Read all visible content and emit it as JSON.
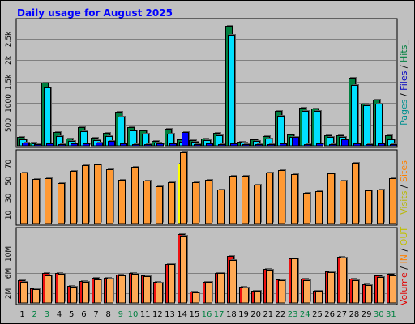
{
  "chart_data": {
    "type": "bar",
    "title": "Daily usage for August 2025",
    "categories": [
      "1",
      "2",
      "3",
      "4",
      "5",
      "6",
      "7",
      "8",
      "9",
      "10",
      "11",
      "12",
      "13",
      "14",
      "15",
      "16",
      "17",
      "18",
      "19",
      "20",
      "21",
      "22",
      "23",
      "24",
      "25",
      "26",
      "27",
      "28",
      "29",
      "30",
      "31"
    ],
    "weekend_days": [
      "2",
      "3",
      "9",
      "10",
      "16",
      "17",
      "23",
      "24",
      "30",
      "31"
    ],
    "panels": [
      {
        "name": "hits-files-pages",
        "yticks": [
          {
            "value": 500,
            "label": "500"
          },
          {
            "value": 1000,
            "label": "1000"
          },
          {
            "value": 1500,
            "label": "1.5k"
          },
          {
            "value": 2000,
            "label": "2k"
          },
          {
            "value": 2500,
            "label": "2.5k"
          }
        ],
        "ylim": [
          0,
          2850
        ],
        "series": [
          {
            "name": "Hits",
            "color": "#008040",
            "values": [
              200,
              80,
              1480,
              330,
              170,
              430,
              190,
              310,
              800,
              440,
              350,
              110,
              390,
              150,
              140,
              170,
              310,
              2800,
              100,
              160,
              230,
              820,
              270,
              890,
              860,
              250,
              250,
              1580,
              990,
              1070,
              250
            ]
          },
          {
            "name": "Files",
            "color": "#00e0ff",
            "values": [
              150,
              60,
              1350,
              230,
              120,
              340,
              140,
              220,
              680,
              360,
              280,
              80,
              280,
              100,
              100,
              130,
              240,
              2580,
              70,
              120,
              170,
              700,
              210,
              820,
              810,
              200,
              200,
              1420,
              940,
              980,
              160
            ]
          },
          {
            "name": "Pages",
            "color": "#0000ff",
            "values": [
              80,
              40,
              60,
              40,
              60,
              50,
              70,
              110,
              60,
              40,
              40,
              50,
              60,
              320,
              40,
              50,
              40,
              60,
              30,
              40,
              40,
              50,
              200,
              40,
              50,
              40,
              150,
              50,
              40,
              60,
              40
            ]
          }
        ],
        "legend": [
          {
            "text": "Pages",
            "color": "#009090"
          },
          {
            "text": " / ",
            "color": "#000000"
          },
          {
            "text": "Files",
            "color": "#0000c0"
          },
          {
            "text": " / ",
            "color": "#000000"
          },
          {
            "text": "Hits",
            "color": "#008040"
          },
          {
            "text": "_",
            "color": "#000000"
          }
        ]
      },
      {
        "name": "visits-sites",
        "yticks": [
          {
            "value": 10,
            "label": "10"
          },
          {
            "value": 30,
            "label": "30"
          },
          {
            "value": 50,
            "label": "50"
          },
          {
            "value": 70,
            "label": "70"
          }
        ],
        "ylim": [
          0,
          80
        ],
        "series": [
          {
            "name": "Visits",
            "color": "#ffff00",
            "values": [
              0,
              0,
              0,
              0,
              0,
              0,
              0,
              0,
              0,
              0,
              0,
              0,
              0,
              70,
              0,
              0,
              0,
              0,
              0,
              0,
              0,
              0,
              0,
              0,
              0,
              0,
              0,
              0,
              0,
              0,
              0
            ]
          },
          {
            "name": "Sites",
            "color": "#ff9933",
            "values": [
              59,
              52,
              53,
              47,
              61,
              68,
              69,
              63,
              51,
              66,
              50,
              43,
              48,
              83,
              48,
              51,
              40,
              56,
              56,
              45,
              59,
              62,
              57,
              36,
              38,
              58,
              50,
              71,
              39,
              40,
              53
            ]
          }
        ],
        "legend": [
          {
            "text": "Visits",
            "color": "#b8b800"
          },
          {
            "text": " / ",
            "color": "#000000"
          },
          {
            "text": "Sites",
            "color": "#ff8000"
          }
        ]
      },
      {
        "name": "volume",
        "yticks": [
          {
            "value": 2,
            "label": "2M"
          },
          {
            "value": 6,
            "label": "6M"
          },
          {
            "value": 10,
            "label": "10M"
          }
        ],
        "ylim": [
          0,
          14.2
        ],
        "series": [
          {
            "name": "Volume",
            "color": "#ee1111",
            "values": [
              4.5,
              3.0,
              6.0,
              6.0,
              3.5,
              4.4,
              5.0,
              5.0,
              5.7,
              6.0,
              5.5,
              4.2,
              7.9,
              13.8,
              2.3,
              4.3,
              6.1,
              9.4,
              3.2,
              2.5,
              6.8,
              4.7,
              9.0,
              4.9,
              2.5,
              6.3,
              9.3,
              4.9,
              3.8,
              5.5,
              5.8
            ]
          },
          {
            "name": "IN",
            "color": "#ffaa55",
            "values": [
              4.2,
              2.8,
              5.6,
              5.8,
              3.3,
              4.2,
              4.8,
              4.9,
              5.5,
              5.9,
              5.4,
              4.1,
              7.8,
              13.6,
              2.2,
              4.2,
              6.0,
              8.6,
              3.1,
              2.4,
              6.7,
              4.5,
              8.9,
              4.6,
              2.4,
              6.2,
              9.1,
              4.5,
              3.6,
              5.2,
              5.6
            ]
          }
        ],
        "legend": [
          {
            "text": "Volume",
            "color": "#e00000"
          },
          {
            "text": " / ",
            "color": "#000000"
          },
          {
            "text": "IN",
            "color": "#ff8000"
          },
          {
            "text": " / ",
            "color": "#000000"
          },
          {
            "text": "OUT",
            "color": "#c0c000"
          }
        ]
      }
    ]
  },
  "colors": {
    "background": "#c0c0c0",
    "grid": "#808080",
    "title": "#0000ff",
    "weekday": "#000000",
    "weekend": "#008040"
  }
}
